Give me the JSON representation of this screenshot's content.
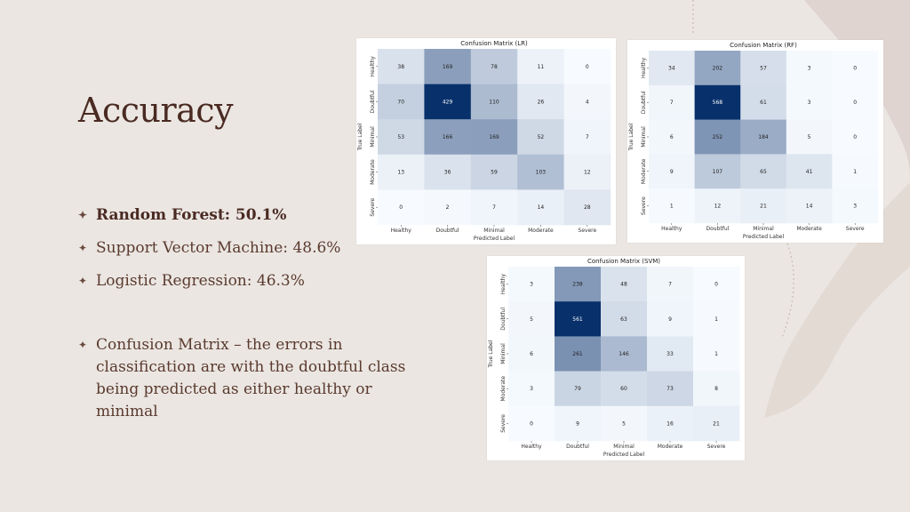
{
  "slide": {
    "title": "Accuracy",
    "bullets": [
      "Random Forest: 50.1%",
      "Support Vector Machine: 48.6%",
      "Logistic Regression: 46.3%",
      "Confusion Matrix – the errors in classification are with the doubtful class being predicted as either healthy or minimal"
    ]
  },
  "colors": {
    "background": "#ebe6e2",
    "title": "#4a2a22",
    "text": "#5a3a2e",
    "cmap_low": "#f7fbff",
    "cmap_high": "#08306b"
  },
  "chart_data": [
    {
      "type": "heatmap",
      "title": "Confusion Matrix (LR)",
      "xlabel": "Predicted Label",
      "ylabel": "True Label",
      "x_categories": [
        "Healthy",
        "Doubtful",
        "Minimal",
        "Moderate",
        "Severe"
      ],
      "y_categories": [
        "Healthy",
        "Doubtful",
        "Minimal",
        "Moderate",
        "Severe"
      ],
      "values": [
        [
          38,
          169,
          78,
          11,
          0
        ],
        [
          70,
          429,
          110,
          26,
          4
        ],
        [
          53,
          166,
          169,
          52,
          7
        ],
        [
          13,
          36,
          59,
          103,
          12
        ],
        [
          0,
          2,
          7,
          14,
          28
        ]
      ]
    },
    {
      "type": "heatmap",
      "title": "Confusion Matrix (RF)",
      "xlabel": "Predicted Label",
      "ylabel": "True Label",
      "x_categories": [
        "Healthy",
        "Doubtful",
        "Minimal",
        "Moderate",
        "Severe"
      ],
      "y_categories": [
        "Healthy",
        "Doubtful",
        "Minimal",
        "Moderate",
        "Severe"
      ],
      "values": [
        [
          34,
          202,
          57,
          3,
          0
        ],
        [
          7,
          568,
          61,
          3,
          0
        ],
        [
          6,
          252,
          184,
          5,
          0
        ],
        [
          9,
          107,
          65,
          41,
          1
        ],
        [
          1,
          12,
          21,
          14,
          3
        ]
      ]
    },
    {
      "type": "heatmap",
      "title": "Confusion Matrix (SVM)",
      "xlabel": "Predicted Label",
      "ylabel": "True Label",
      "x_categories": [
        "Healthy",
        "Doubtful",
        "Minimal",
        "Moderate",
        "Severe"
      ],
      "y_categories": [
        "Healthy",
        "Doubtful",
        "Minimal",
        "Moderate",
        "Severe"
      ],
      "values": [
        [
          3,
          238,
          48,
          7,
          0
        ],
        [
          5,
          561,
          63,
          9,
          1
        ],
        [
          6,
          261,
          146,
          33,
          1
        ],
        [
          3,
          79,
          60,
          73,
          8
        ],
        [
          0,
          9,
          5,
          16,
          21
        ]
      ]
    }
  ]
}
